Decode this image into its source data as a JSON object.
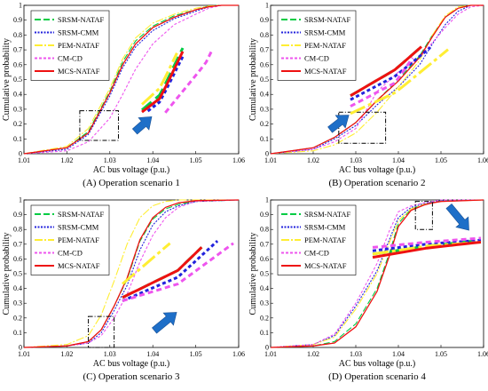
{
  "chart_data": [
    {
      "type": "line",
      "caption": "(A) Operation scenario 1",
      "xlabel": "AC bus voltage (p.u.)",
      "ylabel": "Cumulative probability",
      "xlim": [
        1.01,
        1.06
      ],
      "ylim": [
        0,
        1
      ],
      "xticks": [
        "1.01",
        "1.02",
        "1.03",
        "1.04",
        "1.05",
        "1.06"
      ],
      "yticks": [
        "0",
        "0.1",
        "0.2",
        "0.3",
        "0.4",
        "0.5",
        "0.6",
        "0.7",
        "0.8",
        "0.9",
        "1"
      ],
      "legend": "top-left",
      "series": [
        {
          "name": "SRSM-NATAF",
          "x": [
            1.01,
            1.02,
            1.025,
            1.03,
            1.033,
            1.036,
            1.04,
            1.045,
            1.05,
            1.053,
            1.056,
            1.06
          ],
          "y": [
            0,
            0.04,
            0.15,
            0.42,
            0.62,
            0.76,
            0.86,
            0.93,
            0.97,
            0.995,
            1,
            1
          ]
        },
        {
          "name": "SRSM-CMM",
          "x": [
            1.01,
            1.02,
            1.025,
            1.03,
            1.033,
            1.036,
            1.04,
            1.045,
            1.05,
            1.053,
            1.056,
            1.06
          ],
          "y": [
            0,
            0.03,
            0.13,
            0.39,
            0.58,
            0.72,
            0.83,
            0.91,
            0.96,
            0.99,
            1,
            1
          ]
        },
        {
          "name": "PEM-NATAF",
          "x": [
            1.01,
            1.02,
            1.025,
            1.03,
            1.033,
            1.036,
            1.04,
            1.045,
            1.05,
            1.053,
            1.056,
            1.06
          ],
          "y": [
            0,
            0.05,
            0.17,
            0.44,
            0.64,
            0.78,
            0.88,
            0.94,
            0.98,
            0.995,
            1,
            1
          ]
        },
        {
          "name": "CM-CD",
          "x": [
            1.01,
            1.02,
            1.025,
            1.03,
            1.033,
            1.036,
            1.04,
            1.045,
            1.05,
            1.053,
            1.056,
            1.06
          ],
          "y": [
            0,
            0.02,
            0.08,
            0.24,
            0.4,
            0.57,
            0.74,
            0.87,
            0.94,
            0.98,
            1,
            1
          ]
        },
        {
          "name": "MCS-NATAF",
          "x": [
            1.01,
            1.02,
            1.025,
            1.03,
            1.033,
            1.036,
            1.04,
            1.045,
            1.05,
            1.053,
            1.056,
            1.06
          ],
          "y": [
            0,
            0.04,
            0.14,
            0.41,
            0.6,
            0.74,
            0.85,
            0.92,
            0.97,
            0.99,
            1,
            1
          ]
        }
      ]
    },
    {
      "type": "line",
      "caption": "(B) Operation scenario 2",
      "xlabel": "AC bus voltage (p.u.)",
      "ylabel": "Cumulative probability",
      "xlim": [
        1.01,
        1.06
      ],
      "ylim": [
        0,
        1
      ],
      "xticks": [
        "1.01",
        "1.02",
        "1.03",
        "1.04",
        "1.05",
        "1.06"
      ],
      "yticks": [
        "0",
        "0.1",
        "0.2",
        "0.3",
        "0.4",
        "0.5",
        "0.6",
        "0.7",
        "0.8",
        "0.9",
        "1"
      ],
      "legend": "top-left",
      "series": [
        {
          "name": "SRSM-NATAF",
          "x": [
            1.01,
            1.02,
            1.025,
            1.03,
            1.035,
            1.04,
            1.045,
            1.048,
            1.051,
            1.054,
            1.057,
            1.06
          ],
          "y": [
            0,
            0.04,
            0.11,
            0.21,
            0.36,
            0.5,
            0.66,
            0.8,
            0.92,
            0.98,
            1,
            1
          ]
        },
        {
          "name": "SRSM-CMM",
          "x": [
            1.01,
            1.02,
            1.025,
            1.03,
            1.035,
            1.04,
            1.045,
            1.048,
            1.051,
            1.054,
            1.057,
            1.06
          ],
          "y": [
            0,
            0.03,
            0.1,
            0.19,
            0.33,
            0.45,
            0.6,
            0.74,
            0.87,
            0.96,
            1,
            1
          ]
        },
        {
          "name": "PEM-NATAF",
          "x": [
            1.01,
            1.02,
            1.025,
            1.03,
            1.035,
            1.04,
            1.045,
            1.048,
            1.051,
            1.054,
            1.057,
            1.06
          ],
          "y": [
            0,
            0.02,
            0.06,
            0.14,
            0.28,
            0.45,
            0.63,
            0.8,
            0.93,
            0.99,
            1,
            1
          ]
        },
        {
          "name": "CM-CD",
          "x": [
            1.01,
            1.02,
            1.025,
            1.03,
            1.035,
            1.04,
            1.045,
            1.048,
            1.051,
            1.054,
            1.057,
            1.06
          ],
          "y": [
            0,
            0.03,
            0.08,
            0.17,
            0.42,
            0.55,
            0.65,
            0.75,
            0.85,
            0.94,
            0.99,
            1
          ]
        },
        {
          "name": "MCS-NATAF",
          "x": [
            1.01,
            1.02,
            1.025,
            1.03,
            1.035,
            1.04,
            1.045,
            1.048,
            1.051,
            1.054,
            1.057,
            1.06
          ],
          "y": [
            0,
            0.04,
            0.11,
            0.21,
            0.36,
            0.49,
            0.65,
            0.79,
            0.92,
            0.98,
            1,
            1
          ]
        }
      ]
    },
    {
      "type": "line",
      "caption": "(C) Operation scenario 3",
      "xlabel": "AC bus voltage (p.u.)",
      "ylabel": "Cumulative probability",
      "xlim": [
        1.01,
        1.06
      ],
      "ylim": [
        0,
        1
      ],
      "xticks": [
        "1.01",
        "1.02",
        "1.03",
        "1.04",
        "1.05",
        "1.06"
      ],
      "yticks": [
        "0",
        "0.1",
        "0.2",
        "0.3",
        "0.4",
        "0.5",
        "0.6",
        "0.7",
        "0.8",
        "0.9",
        "1"
      ],
      "legend": "top-left",
      "series": [
        {
          "name": "SRSM-NATAF",
          "x": [
            1.01,
            1.02,
            1.025,
            1.028,
            1.031,
            1.034,
            1.037,
            1.04,
            1.043,
            1.046,
            1.05,
            1.06
          ],
          "y": [
            0,
            0.01,
            0.04,
            0.12,
            0.28,
            0.46,
            0.72,
            0.87,
            0.94,
            0.97,
            0.99,
            1
          ]
        },
        {
          "name": "SRSM-CMM",
          "x": [
            1.01,
            1.02,
            1.025,
            1.028,
            1.031,
            1.034,
            1.037,
            1.04,
            1.043,
            1.046,
            1.05,
            1.06
          ],
          "y": [
            0,
            0.01,
            0.03,
            0.1,
            0.25,
            0.42,
            0.66,
            0.83,
            0.92,
            0.96,
            0.99,
            1
          ]
        },
        {
          "name": "PEM-NATAF",
          "x": [
            1.01,
            1.02,
            1.025,
            1.028,
            1.031,
            1.034,
            1.037,
            1.04,
            1.043,
            1.046,
            1.05,
            1.06
          ],
          "y": [
            0,
            0.02,
            0.08,
            0.22,
            0.45,
            0.7,
            0.88,
            0.96,
            0.99,
            1,
            1,
            1
          ]
        },
        {
          "name": "CM-CD",
          "x": [
            1.01,
            1.02,
            1.025,
            1.028,
            1.031,
            1.034,
            1.037,
            1.04,
            1.043,
            1.046,
            1.05,
            1.06
          ],
          "y": [
            0,
            0.01,
            0.03,
            0.08,
            0.2,
            0.36,
            0.58,
            0.76,
            0.88,
            0.95,
            0.99,
            1
          ]
        },
        {
          "name": "MCS-NATAF",
          "x": [
            1.01,
            1.02,
            1.025,
            1.028,
            1.031,
            1.034,
            1.037,
            1.04,
            1.043,
            1.046,
            1.05,
            1.06
          ],
          "y": [
            0,
            0.01,
            0.04,
            0.12,
            0.28,
            0.47,
            0.73,
            0.88,
            0.95,
            0.98,
            0.995,
            1
          ]
        }
      ]
    },
    {
      "type": "line",
      "caption": "(D) Operation scenario 4",
      "xlabel": "AC bus voltage (p.u.)",
      "ylabel": "Cumulative probability",
      "xlim": [
        1.01,
        1.06
      ],
      "ylim": [
        0,
        1
      ],
      "xticks": [
        "1.01",
        "1.02",
        "1.03",
        "1.04",
        "1.05",
        "1.06"
      ],
      "yticks": [
        "0",
        "0.1",
        "0.2",
        "0.3",
        "0.4",
        "0.5",
        "0.6",
        "0.7",
        "0.8",
        "0.9",
        "1"
      ],
      "legend": "top-left",
      "series": [
        {
          "name": "SRSM-NATAF",
          "x": [
            1.01,
            1.02,
            1.025,
            1.03,
            1.035,
            1.038,
            1.04,
            1.043,
            1.046,
            1.048,
            1.05,
            1.06
          ],
          "y": [
            0,
            0.01,
            0.04,
            0.16,
            0.4,
            0.65,
            0.84,
            0.94,
            0.97,
            0.985,
            0.995,
            1
          ]
        },
        {
          "name": "SRSM-CMM",
          "x": [
            1.01,
            1.02,
            1.025,
            1.03,
            1.035,
            1.038,
            1.04,
            1.043,
            1.046,
            1.048,
            1.05,
            1.06
          ],
          "y": [
            0,
            0.02,
            0.08,
            0.28,
            0.52,
            0.74,
            0.88,
            0.95,
            0.975,
            0.985,
            0.995,
            1
          ]
        },
        {
          "name": "PEM-NATAF",
          "x": [
            1.01,
            1.02,
            1.025,
            1.03,
            1.035,
            1.038,
            1.04,
            1.043,
            1.046,
            1.048,
            1.05,
            1.06
          ],
          "y": [
            0,
            0.02,
            0.07,
            0.26,
            0.5,
            0.72,
            0.86,
            0.94,
            0.97,
            0.98,
            0.99,
            1
          ]
        },
        {
          "name": "CM-CD",
          "x": [
            1.01,
            1.02,
            1.025,
            1.03,
            1.035,
            1.038,
            1.04,
            1.043,
            1.046,
            1.048,
            1.05,
            1.06
          ],
          "y": [
            0,
            0.02,
            0.09,
            0.3,
            0.57,
            0.8,
            0.92,
            0.96,
            0.98,
            0.99,
            1,
            1
          ]
        },
        {
          "name": "MCS-NATAF",
          "x": [
            1.01,
            1.02,
            1.025,
            1.03,
            1.035,
            1.038,
            1.04,
            1.043,
            1.046,
            1.048,
            1.05,
            1.06
          ],
          "y": [
            0,
            0.01,
            0.03,
            0.14,
            0.38,
            0.63,
            0.82,
            0.93,
            0.965,
            0.98,
            0.99,
            1
          ]
        }
      ]
    }
  ],
  "style": {
    "series_colors": [
      "#00cc44",
      "#2222dd",
      "#ffee33",
      "#ee55ee",
      "#ee1111"
    ],
    "arrow_color": "#1e6fc8"
  }
}
